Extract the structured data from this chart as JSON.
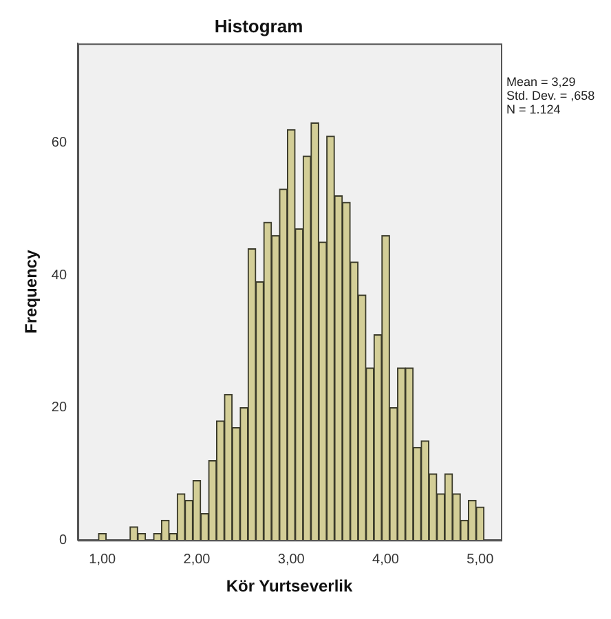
{
  "chart_data": {
    "type": "histogram",
    "title": "Histogram",
    "xlabel": "Kör Yurtseverlik",
    "ylabel": "Frequency",
    "bins": [
      0.958,
      1.042,
      1.125,
      1.208,
      1.292,
      1.375,
      1.458,
      1.542,
      1.625,
      1.708,
      1.792,
      1.875,
      1.958,
      2.042,
      2.125,
      2.208,
      2.292,
      2.375,
      2.458,
      2.542,
      2.625,
      2.708,
      2.792,
      2.875,
      2.958,
      3.042,
      3.125,
      3.208,
      3.292,
      3.375,
      3.458,
      3.542,
      3.625,
      3.708,
      3.792,
      3.875,
      3.958,
      4.042,
      4.125,
      4.208,
      4.292,
      4.375,
      4.458,
      4.542,
      4.625,
      4.708,
      4.792,
      4.875,
      4.958,
      5.042
    ],
    "values": [
      1,
      0,
      0,
      0,
      2,
      1,
      0,
      1,
      3,
      1,
      7,
      6,
      9,
      4,
      12,
      18,
      22,
      17,
      20,
      44,
      39,
      48,
      46,
      53,
      62,
      47,
      58,
      63,
      45,
      61,
      52,
      51,
      42,
      37,
      26,
      31,
      46,
      20,
      26,
      26,
      14,
      15,
      10,
      7,
      10,
      7,
      3,
      6,
      5
    ],
    "color": "#d3ce97",
    "xlim": [
      0.74,
      5.22
    ],
    "xticks": [
      {
        "value": 1,
        "label": "1,00"
      },
      {
        "value": 2,
        "label": "2,00"
      },
      {
        "value": 3,
        "label": "3,00"
      },
      {
        "value": 4,
        "label": "4,00"
      },
      {
        "value": 5,
        "label": "5,00"
      }
    ],
    "ylim": [
      0,
      75
    ],
    "yticks": [
      0,
      20,
      40,
      60
    ],
    "grid": false,
    "legend": false,
    "annotations": [
      "Mean = 3,29",
      "Std. Dev. = ,658",
      "N = 1.124"
    ]
  }
}
